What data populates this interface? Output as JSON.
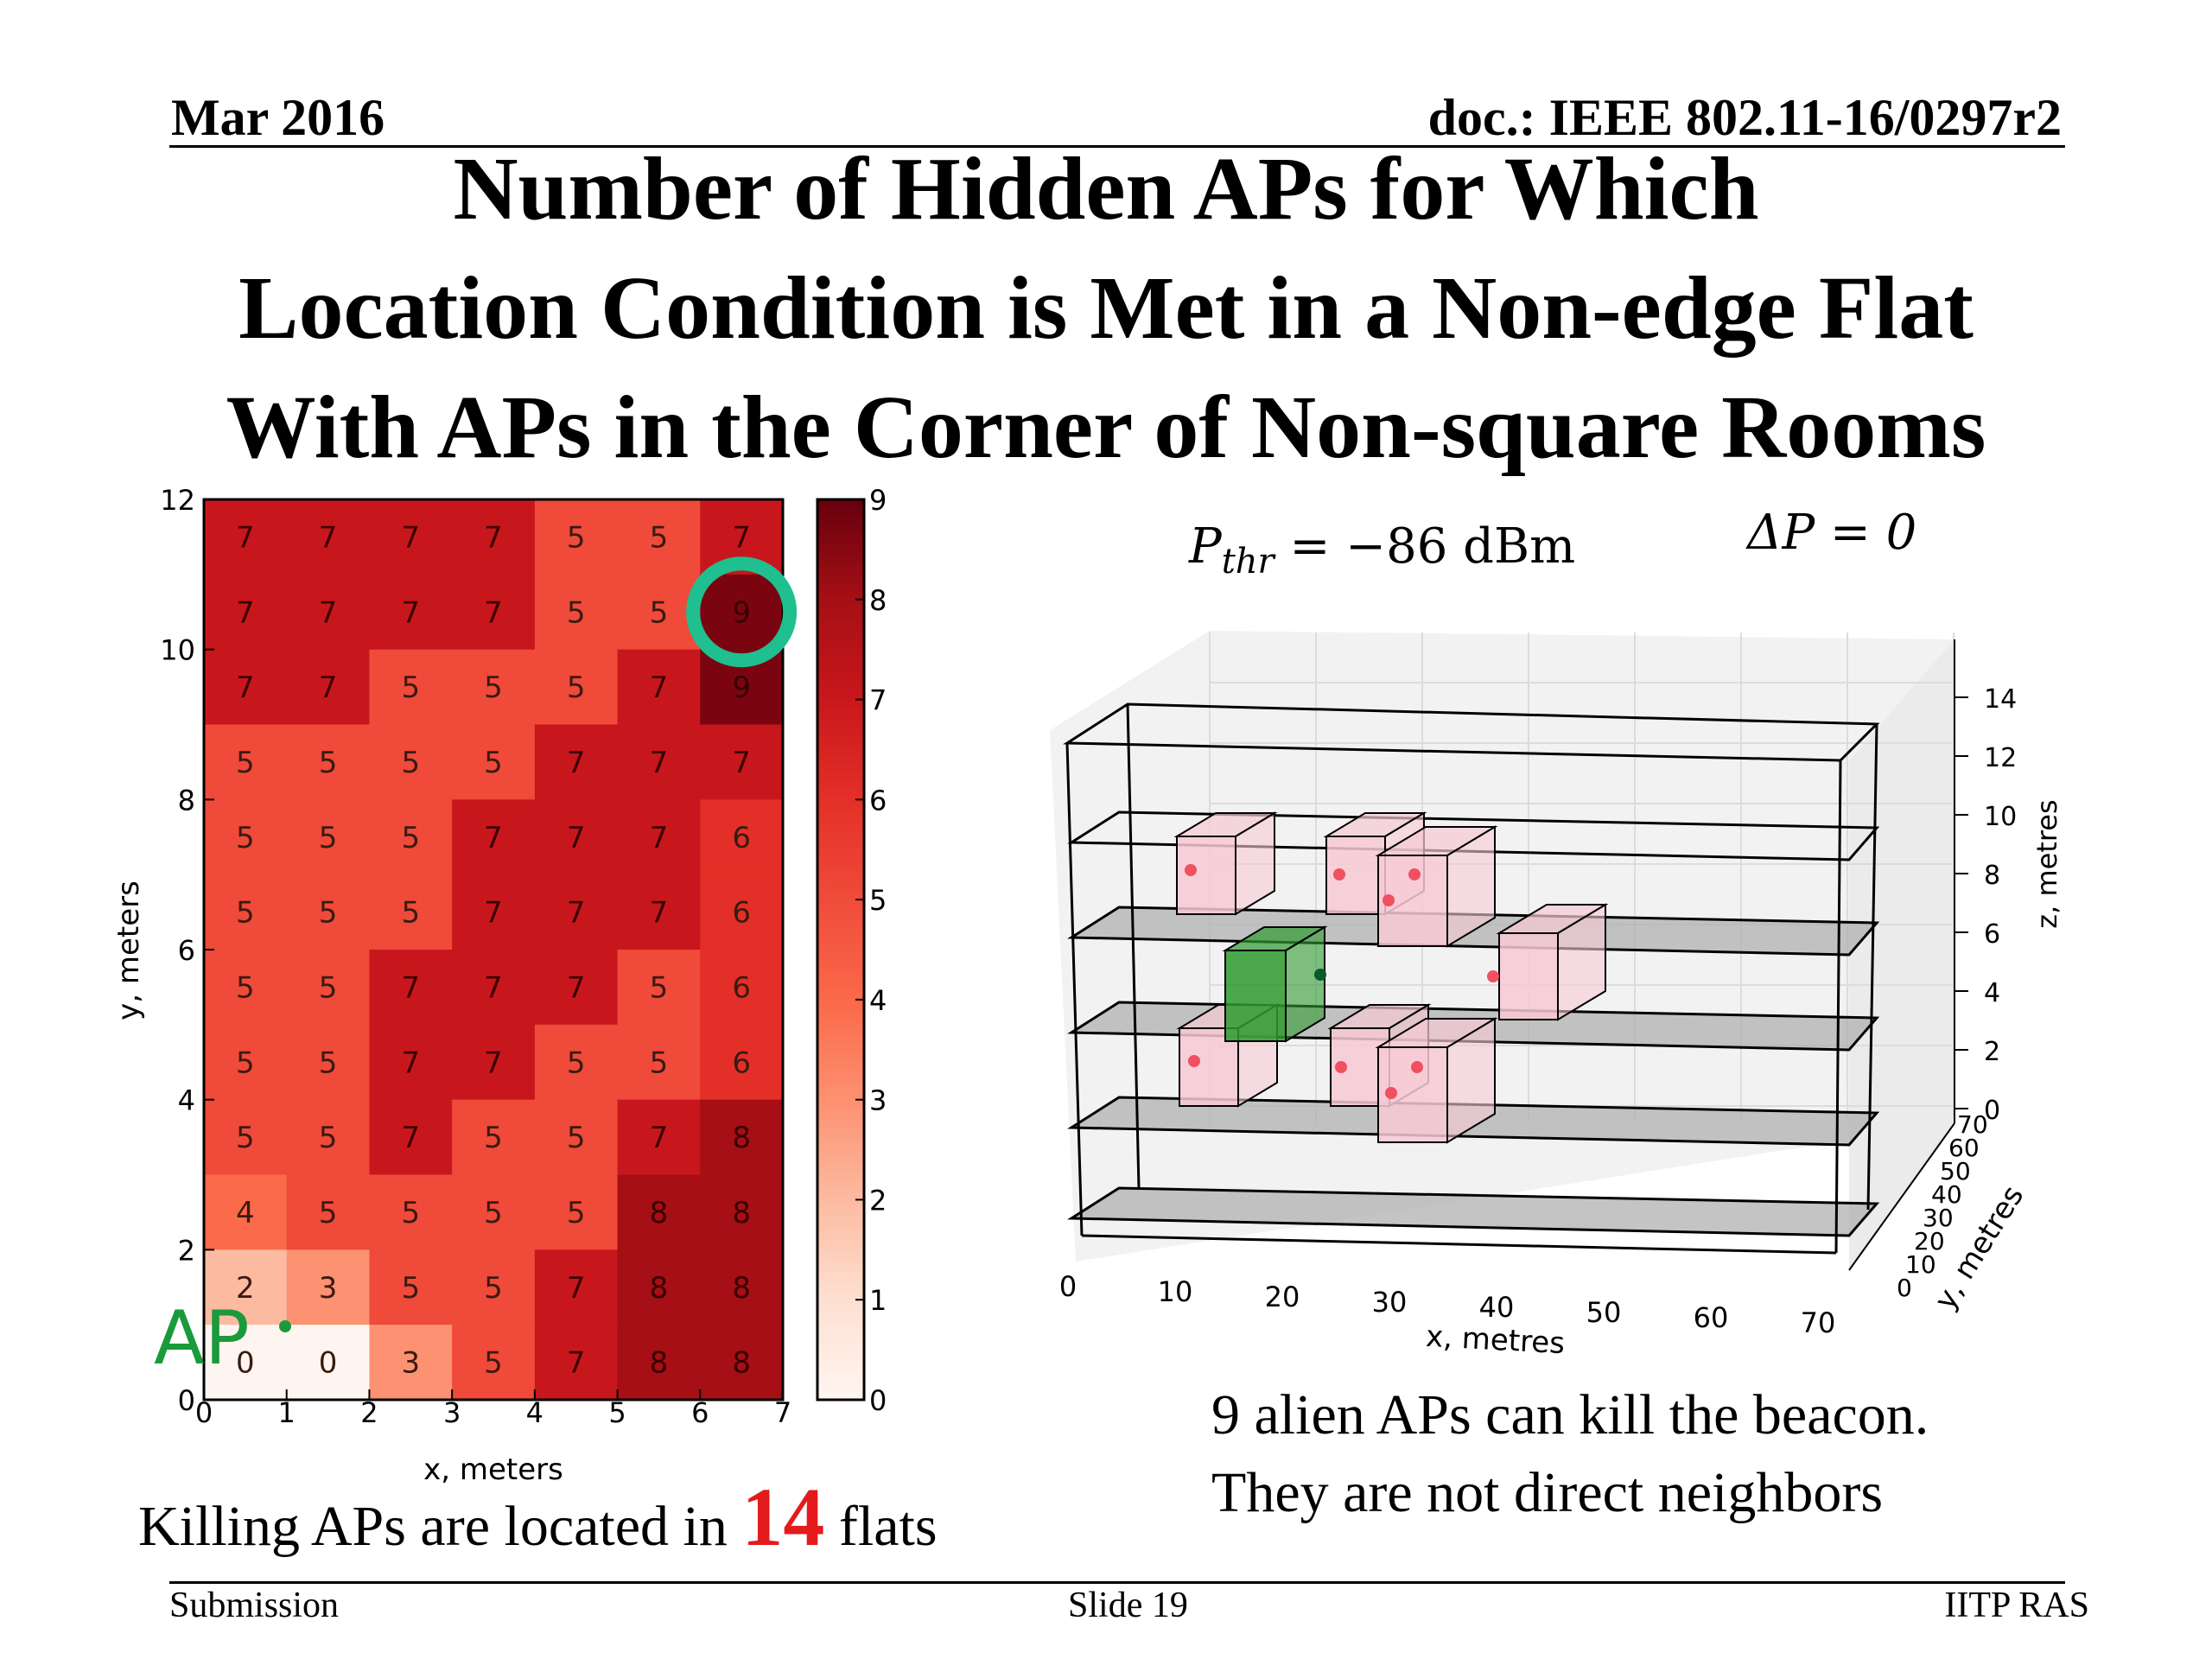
{
  "header": {
    "date": "Mar 2016",
    "doc": "doc.: IEEE 802.11-16/0297r2"
  },
  "title": {
    "lines": [
      "Number of Hidden APs for Which",
      "Location Condition is Met in a Non-edge Flat",
      "With APs in the Corner of Non-square Rooms"
    ]
  },
  "heatmap": {
    "xlabel": "x, meters",
    "ylabel": "y, meters",
    "xticks": [
      "0",
      "1",
      "2",
      "3",
      "4",
      "5",
      "6",
      "7"
    ],
    "yticks": [
      "0",
      "2",
      "4",
      "6",
      "8",
      "10",
      "12"
    ],
    "colorbar_ticks": [
      "0",
      "1",
      "2",
      "3",
      "4",
      "5",
      "6",
      "7",
      "8",
      "9"
    ],
    "ap_label": "AP",
    "rows_top_to_bottom": [
      [
        7,
        7,
        7,
        7,
        5,
        5,
        7
      ],
      [
        7,
        7,
        7,
        7,
        5,
        5,
        9
      ],
      [
        7,
        7,
        5,
        5,
        5,
        7,
        9
      ],
      [
        5,
        5,
        5,
        5,
        7,
        7,
        7
      ],
      [
        5,
        5,
        5,
        7,
        7,
        7,
        6
      ],
      [
        5,
        5,
        5,
        7,
        7,
        7,
        6
      ],
      [
        5,
        5,
        7,
        7,
        7,
        5,
        6
      ],
      [
        5,
        5,
        7,
        7,
        5,
        5,
        6
      ],
      [
        5,
        5,
        7,
        5,
        5,
        7,
        8
      ],
      [
        4,
        5,
        5,
        5,
        5,
        8,
        8
      ],
      [
        2,
        3,
        5,
        5,
        7,
        8,
        8
      ],
      [
        0,
        0,
        3,
        5,
        7,
        8,
        8
      ]
    ],
    "highlight": {
      "row_from_top": 1,
      "col": 6
    },
    "colors": {
      "0": "#fff5f0",
      "1": "#fee0d2",
      "2": "#fcbba1",
      "3": "#fc9272",
      "4": "#fb6a4a",
      "5": "#ef4a3a",
      "6": "#e32f27",
      "7": "#c8171c",
      "8": "#a50f15",
      "9": "#7a0510",
      "highlight_ring": "#1fbf8f",
      "ap_marker": "#1a9a3a"
    }
  },
  "chart3d": {
    "xlabel": "x, metres",
    "ylabel": "y, metres",
    "zlabel": "z, metres",
    "xticks": [
      "0",
      "10",
      "20",
      "30",
      "40",
      "50",
      "60",
      "70"
    ],
    "yticks": [
      "0",
      "10",
      "20",
      "30",
      "40",
      "50",
      "60",
      "70"
    ],
    "zticks": [
      "0",
      "2",
      "4",
      "6",
      "8",
      "10",
      "12",
      "14"
    ],
    "eq_pthr": "P",
    "eq_pthr_sub": "thr",
    "eq_pthr_rhs": " = −86 dBm",
    "eq_dp": "ΔP = 0",
    "colors": {
      "target_room": "#2e9a2e",
      "alien_room": "#f7c9d3",
      "ap_dot": "#f05060",
      "slab": "#b0b0b0"
    }
  },
  "captions": {
    "killing_prefix": "Killing APs are located in ",
    "killing_number": "14",
    "killing_suffix": " flats",
    "alien_line1": "9 alien APs can kill the beacon.",
    "alien_line2": "They are not direct neighbors"
  },
  "footer": {
    "left": "Submission",
    "center": "Slide 19",
    "right": "IITP RAS"
  }
}
